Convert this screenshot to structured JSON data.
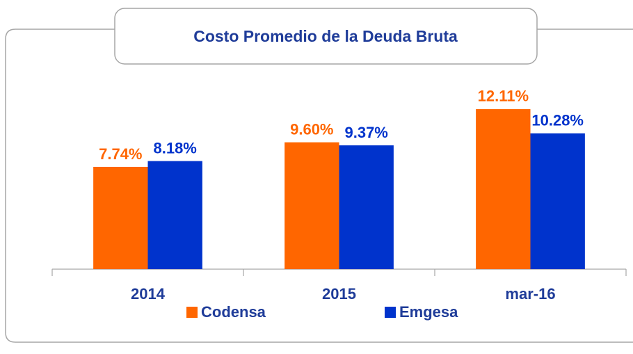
{
  "chart_data": {
    "type": "bar",
    "title": "Costo Promedio de la Deuda Bruta",
    "categories": [
      "2014",
      "2015",
      "mar-16"
    ],
    "series": [
      {
        "name": "Codensa",
        "color": "#ff6600",
        "values": [
          7.74,
          9.6,
          12.11
        ],
        "value_labels": [
          "7.74%",
          "9.60%",
          "12.11%"
        ]
      },
      {
        "name": "Emgesa",
        "color": "#0033cc",
        "values": [
          8.18,
          9.37,
          10.28
        ],
        "value_labels": [
          "8.18%",
          "9.37%",
          "10.28%"
        ]
      }
    ],
    "ylim": [
      0,
      14
    ],
    "legend": "bottom"
  }
}
